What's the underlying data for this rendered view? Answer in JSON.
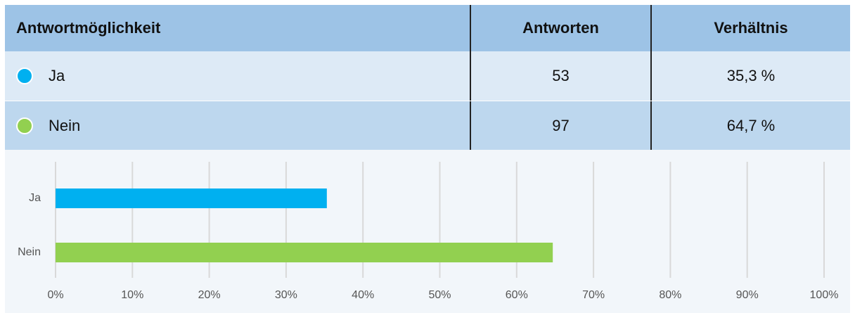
{
  "table": {
    "header": [
      "Antwortmöglichkeit",
      "Antworten",
      "Verhältnis"
    ],
    "rows": [
      [
        "Ja",
        "53",
        "35,3 %"
      ],
      [
        "Nein",
        "97",
        "64,7 %"
      ]
    ]
  },
  "chart_data": {
    "type": "bar",
    "orientation": "horizontal",
    "categories": [
      "Ja",
      "Nein"
    ],
    "values": [
      35.3,
      64.7
    ],
    "colors": [
      "#00b0f0",
      "#92d050"
    ],
    "xlim": [
      0,
      100
    ],
    "xticks": [
      {
        "value": 0,
        "label": "0%"
      },
      {
        "value": 10,
        "label": "10%"
      },
      {
        "value": 20,
        "label": "20%"
      },
      {
        "value": 30,
        "label": "30%"
      },
      {
        "value": 40,
        "label": "40%"
      },
      {
        "value": 50,
        "label": "50%"
      },
      {
        "value": 60,
        "label": "60%"
      },
      {
        "value": 70,
        "label": "70%"
      },
      {
        "value": 80,
        "label": "80%"
      },
      {
        "value": 90,
        "label": "90%"
      },
      {
        "value": 100,
        "label": "100%"
      }
    ],
    "grid": true
  }
}
